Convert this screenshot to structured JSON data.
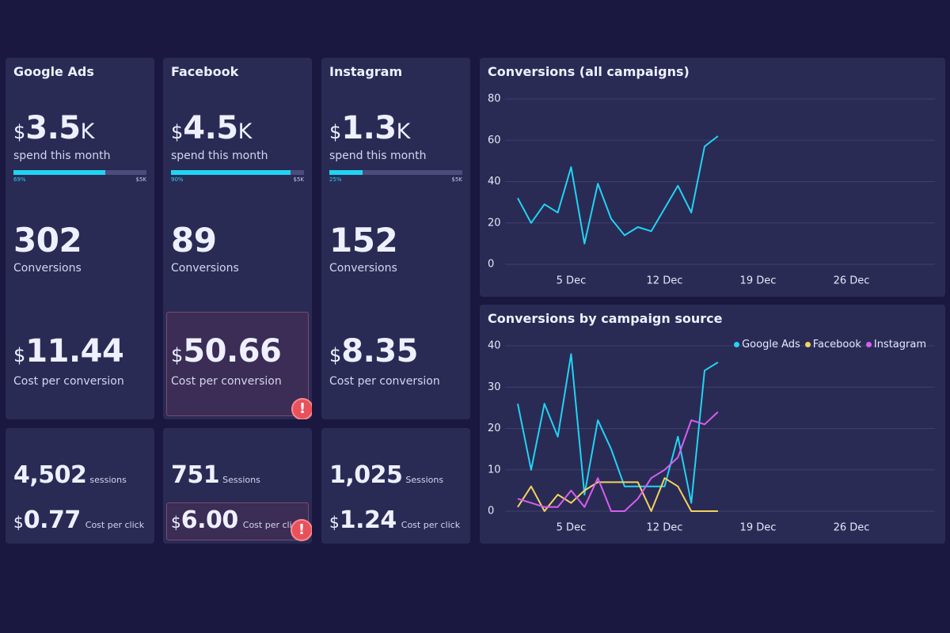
{
  "cards": [
    {
      "title": "Google Ads",
      "spend": {
        "currency": "$",
        "amount": "3.5",
        "unit": "K",
        "label": "spend this month",
        "progress": {
          "value": 69,
          "label": "69%"
        },
        "max": "$5K"
      },
      "conversions": {
        "value": "302",
        "label": "Conversions"
      },
      "cost_per_conversion": {
        "currency": "$",
        "value": "11.44",
        "label": "Cost per conversion",
        "alert": false
      },
      "sessions": {
        "value": "4,502",
        "label": "sessions"
      },
      "cost_per_click": {
        "currency": "$",
        "value": "0.77",
        "label": "Cost per click",
        "alert": false
      }
    },
    {
      "title": "Facebook",
      "spend": {
        "currency": "$",
        "amount": "4.5",
        "unit": "K",
        "label": "spend this month",
        "progress": {
          "value": 90,
          "label": "90%"
        },
        "max": "$5K"
      },
      "conversions": {
        "value": "89",
        "label": "Conversions"
      },
      "cost_per_conversion": {
        "currency": "$",
        "value": "50.66",
        "label": "Cost per conversion",
        "alert": true
      },
      "sessions": {
        "value": "751",
        "label": "Sessions"
      },
      "cost_per_click": {
        "currency": "$",
        "value": "6.00",
        "label": "Cost per click",
        "alert": true
      }
    },
    {
      "title": "Instagram",
      "spend": {
        "currency": "$",
        "amount": "1.3",
        "unit": "K",
        "label": "spend this month",
        "progress": {
          "value": 25,
          "label": "25%"
        },
        "max": "$5K"
      },
      "conversions": {
        "value": "152",
        "label": "Conversions"
      },
      "cost_per_conversion": {
        "currency": "$",
        "value": "8.35",
        "label": "Cost per conversion",
        "alert": false
      },
      "sessions": {
        "value": "1,025",
        "label": "Sessions"
      },
      "cost_per_click": {
        "currency": "$",
        "value": "1.24",
        "label": "Cost per click",
        "alert": false
      }
    }
  ],
  "chart_data": [
    {
      "type": "line",
      "title": "Conversions (all campaigns)",
      "categories": [
        null,
        null,
        null,
        null,
        "5 Dec",
        null,
        null,
        null,
        null,
        null,
        null,
        "12 Dec",
        null,
        null,
        null,
        null,
        null,
        null,
        "19 Dec",
        null,
        null,
        null,
        null,
        null,
        null,
        "26 Dec",
        null,
        null,
        null,
        null,
        null
      ],
      "series": [
        {
          "name": "Conversions",
          "color": "#22d3f2",
          "values": [
            32,
            20,
            29,
            25,
            47,
            10,
            39,
            22,
            14,
            18,
            16,
            27,
            38,
            25,
            57,
            62,
            null,
            null,
            null,
            null,
            null,
            null,
            null,
            null,
            null,
            null,
            null,
            null,
            null,
            null,
            null
          ]
        }
      ],
      "ylim": [
        0,
        80
      ],
      "yticks": [
        0,
        20,
        40,
        60,
        80
      ],
      "grid": true,
      "legend": false
    },
    {
      "type": "line",
      "title": "Conversions by campaign source",
      "categories": [
        null,
        null,
        null,
        null,
        "5 Dec",
        null,
        null,
        null,
        null,
        null,
        null,
        "12 Dec",
        null,
        null,
        null,
        null,
        null,
        null,
        "19 Dec",
        null,
        null,
        null,
        null,
        null,
        null,
        "26 Dec",
        null,
        null,
        null,
        null,
        null
      ],
      "series": [
        {
          "name": "Google Ads",
          "color": "#22d3f2",
          "values": [
            26,
            10,
            26,
            18,
            38,
            4,
            22,
            15,
            6,
            6,
            6,
            6,
            18,
            2,
            34,
            36,
            null,
            null,
            null,
            null,
            null,
            null,
            null,
            null,
            null,
            null,
            null,
            null,
            null,
            null,
            null
          ]
        },
        {
          "name": "Facebook",
          "color": "#f2d45c",
          "values": [
            1,
            6,
            0,
            4,
            2,
            5,
            7,
            7,
            7,
            7,
            0,
            8,
            6,
            0,
            0,
            0,
            null,
            null,
            null,
            null,
            null,
            null,
            null,
            null,
            null,
            null,
            null,
            null,
            null,
            null,
            null
          ]
        },
        {
          "name": "Instagram",
          "color": "#d65ef0",
          "values": [
            3,
            2,
            1,
            1,
            5,
            1,
            8,
            0,
            0,
            3,
            8,
            10,
            13,
            22,
            21,
            24,
            null,
            null,
            null,
            null,
            null,
            null,
            null,
            null,
            null,
            null,
            null,
            null,
            null,
            null,
            null
          ]
        }
      ],
      "ylim": [
        0,
        40
      ],
      "yticks": [
        0,
        10,
        20,
        30,
        40
      ],
      "grid": true,
      "legend": "top-right"
    }
  ]
}
